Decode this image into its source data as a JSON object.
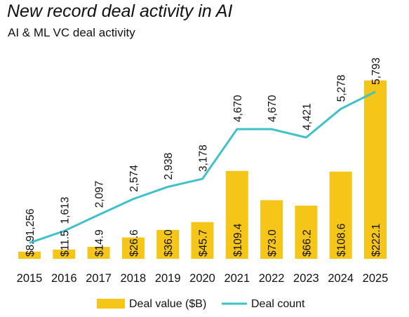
{
  "title": "New record deal activity in AI",
  "subtitle": "AI & ML VC deal activity",
  "chart_data": {
    "type": "bar",
    "categories": [
      "2015",
      "2016",
      "2017",
      "2018",
      "2019",
      "2020",
      "2021",
      "2022",
      "2023",
      "2024",
      "2025"
    ],
    "series": [
      {
        "name": "Deal value ($B)",
        "kind": "bar",
        "color": "#F5C518",
        "values": [
          8.9,
          11.5,
          14.9,
          26.6,
          36.0,
          45.7,
          109.4,
          73.0,
          66.2,
          108.6,
          222.1
        ],
        "labels": [
          "$8.9",
          "$11.5",
          "$14.9",
          "$26.6",
          "$36.0",
          "$45.7",
          "$109.4",
          "$73.0",
          "$66.2",
          "$108.6",
          "$222.1"
        ]
      },
      {
        "name": "Deal count",
        "kind": "line",
        "color": "#3FC1C9",
        "values": [
          1256,
          1613,
          2097,
          2574,
          2938,
          3178,
          4670,
          4670,
          4421,
          5278,
          5793
        ],
        "labels": [
          "1,256",
          "1,613",
          "2,097",
          "2,574",
          "2,938",
          "3,178",
          "4,670",
          "4,670",
          "4,421",
          "5,278",
          "5,793"
        ]
      }
    ],
    "legend": "bottom-center",
    "grid": false
  }
}
